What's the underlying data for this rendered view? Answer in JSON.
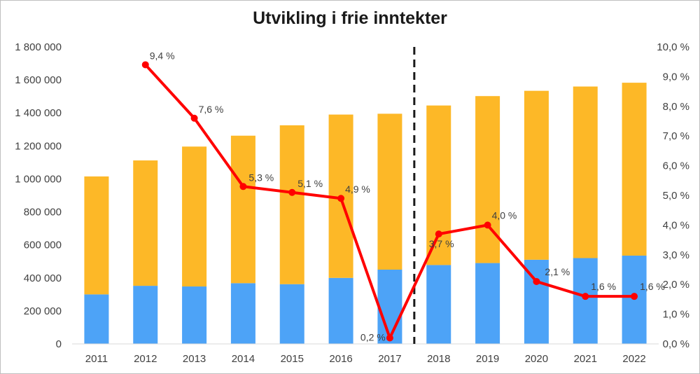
{
  "chart_data": {
    "type": "bar",
    "title": "Utvikling i frie inntekter",
    "categories": [
      "2011",
      "2012",
      "2013",
      "2014",
      "2015",
      "2016",
      "2017",
      "2018",
      "2019",
      "2020",
      "2021",
      "2022"
    ],
    "series": [
      {
        "name": "",
        "kind": "stacked-bar",
        "color": "#4da3f7",
        "values": [
          300000,
          352000,
          348000,
          368000,
          362000,
          400000,
          450000,
          478000,
          490000,
          510000,
          520000,
          535000
        ]
      },
      {
        "name": "",
        "kind": "stacked-bar",
        "color": "#fdb827",
        "values": [
          715000,
          760000,
          848000,
          894000,
          963000,
          990000,
          945000,
          967000,
          1012000,
          1024000,
          1040000,
          1048000
        ]
      },
      {
        "name": "",
        "kind": "line",
        "axis": "right",
        "color": "#ff0000",
        "x": [
          "2012",
          "2013",
          "2014",
          "2015",
          "2016",
          "2017",
          "2018",
          "2019",
          "2020",
          "2021",
          "2022"
        ],
        "values": [
          9.4,
          7.6,
          5.3,
          5.1,
          4.9,
          0.2,
          3.7,
          4.0,
          2.1,
          1.6,
          1.6
        ],
        "labels": [
          "9,4 %",
          "7,6 %",
          "5,3 %",
          "5,1 %",
          "4,9 %",
          "0,2 %",
          "3,7 %",
          "4,0 %",
          "2,1 %",
          "1,6 %",
          "1,6 %"
        ]
      }
    ],
    "y_left": {
      "ylim": [
        0,
        1800000
      ],
      "ticks": [
        "0",
        "200 000",
        "400 000",
        "600 000",
        "800 000",
        "1 000 000",
        "1 200 000",
        "1 400 000",
        "1 600 000",
        "1 800 000"
      ]
    },
    "y_right": {
      "ylim": [
        0,
        10
      ],
      "ticks": [
        "0,0 %",
        "1,0 %",
        "2,0 %",
        "3,0 %",
        "4,0 %",
        "5,0 %",
        "6,0 %",
        "7,0 %",
        "8,0 %",
        "9,0 %",
        "10,0 %"
      ]
    },
    "divider_after": "2017",
    "grid": false,
    "legend": "none",
    "xlabel": "",
    "ylabel": ""
  }
}
